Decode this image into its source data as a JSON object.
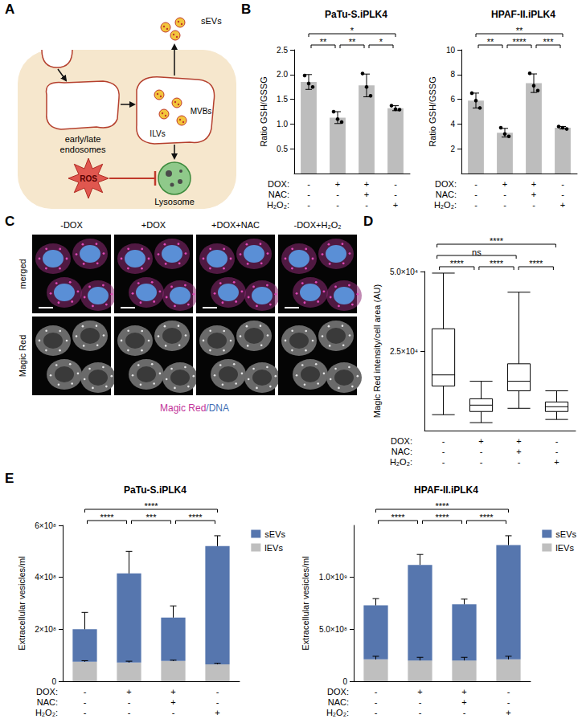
{
  "panel_labels": [
    "A",
    "B",
    "C",
    "D",
    "E"
  ],
  "diagram": {
    "vesicles": "sEVs",
    "endosomes": [
      "early/late",
      "endosomes"
    ],
    "ilvs": "ILVs",
    "mvbs": "MVBs",
    "ros": "ROS",
    "lysosome": "Lysosome"
  },
  "micrographs": {
    "columns": [
      "-DOX",
      "+DOX",
      "+DOX+NAC",
      "-DOX+H₂O₂"
    ],
    "rows": [
      "merged",
      "Magic Red"
    ],
    "caption": [
      {
        "text": "Magic Red",
        "color": "#c2359a"
      },
      {
        "text": "/DNA",
        "color": "#3f6fb5"
      }
    ]
  },
  "chart_data": [
    {
      "type": "bar",
      "title": "PaTu-S.iPLK4",
      "ylabel": "Ratio GSH/GSSG",
      "categories": [
        "-\n-\n-",
        "+\n-\n-",
        "+\n+\n-",
        "-\n-\n+"
      ],
      "annotations": {
        "rows": [
          "DOX:",
          "NAC:",
          "H₂O₂:"
        ],
        "significance": [
          {
            "between": [
              0,
              1
            ],
            "label": "**"
          },
          {
            "between": [
              1,
              2
            ],
            "label": "**"
          },
          {
            "between": [
              2,
              3
            ],
            "label": "*"
          },
          {
            "between": [
              0,
              3
            ],
            "label": "*"
          }
        ]
      },
      "values": [
        1.85,
        1.13,
        1.78,
        1.32
      ],
      "errors": [
        0.15,
        0.12,
        0.23,
        0.05
      ],
      "points": [
        [
          1.98,
          1.82,
          1.75
        ],
        [
          1.25,
          1.1,
          1.04
        ],
        [
          2.02,
          1.75,
          1.57
        ],
        [
          1.37,
          1.3,
          1.29
        ]
      ],
      "color": "#bdbdbd",
      "ylim": [
        0,
        2.5
      ],
      "yticks": [
        0.5,
        {
          "value": 1,
          "label": "1.0"
        },
        1.5,
        {
          "value": 2,
          "label": "2.0"
        },
        2.5
      ],
      "grid": false
    },
    {
      "type": "bar",
      "title": "HPAF-II.iPLK4",
      "ylabel": "Ratio GSH/GSSG",
      "categories": [
        "-\n-\n-",
        "+\n-\n-",
        "+\n+\n-",
        "-\n-\n+"
      ],
      "annotations": {
        "rows": [
          "DOX:",
          "NAC:",
          "H₂O₂:"
        ],
        "significance": [
          {
            "between": [
              0,
              1
            ],
            "label": "**"
          },
          {
            "between": [
              1,
              2
            ],
            "label": "****"
          },
          {
            "between": [
              2,
              3
            ],
            "label": "***"
          },
          {
            "between": [
              0,
              3
            ],
            "label": "**"
          }
        ]
      },
      "values": [
        5.9,
        3.3,
        7.3,
        3.7
      ],
      "errors": [
        0.6,
        0.35,
        0.75,
        0.1
      ],
      "points": [
        [
          6.5,
          5.9,
          5.3
        ],
        [
          3.7,
          3.2,
          3.0
        ],
        [
          8.1,
          7.1,
          6.7
        ],
        [
          3.8,
          3.7,
          3.6
        ]
      ],
      "color": "#bdbdbd",
      "ylim": [
        0,
        10
      ],
      "yticks": [
        2,
        4,
        6,
        8,
        10
      ],
      "grid": false
    },
    {
      "type": "boxplot",
      "ylabel": "Magic Red intensity/cell area (AU)",
      "categories": [
        "-\n-\n-",
        "+\n-\n-",
        "+\n+\n-",
        "-\n-\n+"
      ],
      "annotations": {
        "rows": [
          "DOX:",
          "NAC:",
          "H₂O₂:"
        ],
        "significance": [
          {
            "between": [
              0,
              1
            ],
            "label": "****"
          },
          {
            "between": [
              1,
              2
            ],
            "label": "****"
          },
          {
            "between": [
              2,
              3
            ],
            "label": "****"
          },
          {
            "between": [
              0,
              2
            ],
            "label": "ns"
          },
          {
            "between": [
              0,
              3
            ],
            "label": "****"
          }
        ]
      },
      "values": [
        [
          5000,
          14000,
          17500,
          32000,
          49500
        ],
        [
          2500,
          6000,
          8000,
          10000,
          15500
        ],
        [
          7000,
          12500,
          15500,
          21000,
          43500
        ],
        [
          3500,
          6000,
          7500,
          9000,
          12500
        ]
      ],
      "color": "#000000",
      "ylim": [
        0,
        50000
      ],
      "yticks": [
        {
          "value": 25000,
          "label": "2.5×10⁴"
        },
        {
          "value": 50000,
          "label": "5.0×10⁴"
        }
      ],
      "grid": false
    },
    {
      "type": "bar",
      "stacked": true,
      "title": "PaTu-S.iPLK4",
      "ylabel": "Extracellular vesicles/ml",
      "categories": [
        "-\n-\n-",
        "+\n-\n-",
        "+\n+\n-",
        "-\n-\n+"
      ],
      "annotations": {
        "rows": [
          "DOX:",
          "NAC:",
          "H₂O₂:"
        ],
        "significance": [
          {
            "between": [
              0,
              1
            ],
            "label": "****"
          },
          {
            "between": [
              1,
              2
            ],
            "label": "***"
          },
          {
            "between": [
              2,
              3
            ],
            "label": "****"
          },
          {
            "between": [
              0,
              3
            ],
            "label": "****"
          }
        ]
      },
      "series": [
        {
          "name": "sEVs",
          "color": "#5676ae",
          "values": [
            125000000,
            343000000,
            167000000,
            455000000
          ],
          "errors": [
            65000000,
            85000000,
            45000000,
            40000000
          ]
        },
        {
          "name": "lEVs",
          "color": "#bfbfbf",
          "values": [
            75000000,
            72000000,
            78000000,
            65000000
          ],
          "errors": [
            4000000,
            5000000,
            3000000,
            4000000
          ]
        }
      ],
      "legend": "right",
      "ylim": [
        0,
        600000000
      ],
      "yticks": [
        0,
        {
          "value": 200000000,
          "label": "2×10⁸"
        },
        {
          "value": 400000000,
          "label": "4×10⁸"
        },
        {
          "value": 600000000,
          "label": "6×10⁸"
        }
      ],
      "grid": false
    },
    {
      "type": "bar",
      "stacked": true,
      "title": "HPAF-II.iPLK4",
      "ylabel": "Extracellular vesicles/ml",
      "categories": [
        "-\n-\n-",
        "+\n-\n-",
        "+\n+\n-",
        "-\n-\n+"
      ],
      "annotations": {
        "rows": [
          "DOX:",
          "NAC:",
          "H₂O₂:"
        ],
        "significance": [
          {
            "between": [
              0,
              1
            ],
            "label": "****"
          },
          {
            "between": [
              1,
              2
            ],
            "label": "****"
          },
          {
            "between": [
              2,
              3
            ],
            "label": "****"
          },
          {
            "between": [
              0,
              3
            ],
            "label": "****"
          }
        ]
      },
      "series": [
        {
          "name": "sEVs",
          "color": "#5676ae",
          "values": [
            520000000,
            920000000,
            540000000,
            1100000000
          ],
          "errors": [
            65000000,
            100000000,
            50000000,
            90000000
          ]
        },
        {
          "name": "lEVs",
          "color": "#bfbfbf",
          "values": [
            210000000,
            200000000,
            200000000,
            210000000
          ],
          "errors": [
            30000000,
            30000000,
            30000000,
            30000000
          ]
        }
      ],
      "legend": "right",
      "ylim": [
        0,
        1500000000
      ],
      "yticks": [
        0,
        {
          "value": 500000000,
          "label": "5.0×10⁸"
        },
        {
          "value": 1000000000,
          "label": "1.0×10⁹"
        }
      ],
      "grid": false
    }
  ]
}
